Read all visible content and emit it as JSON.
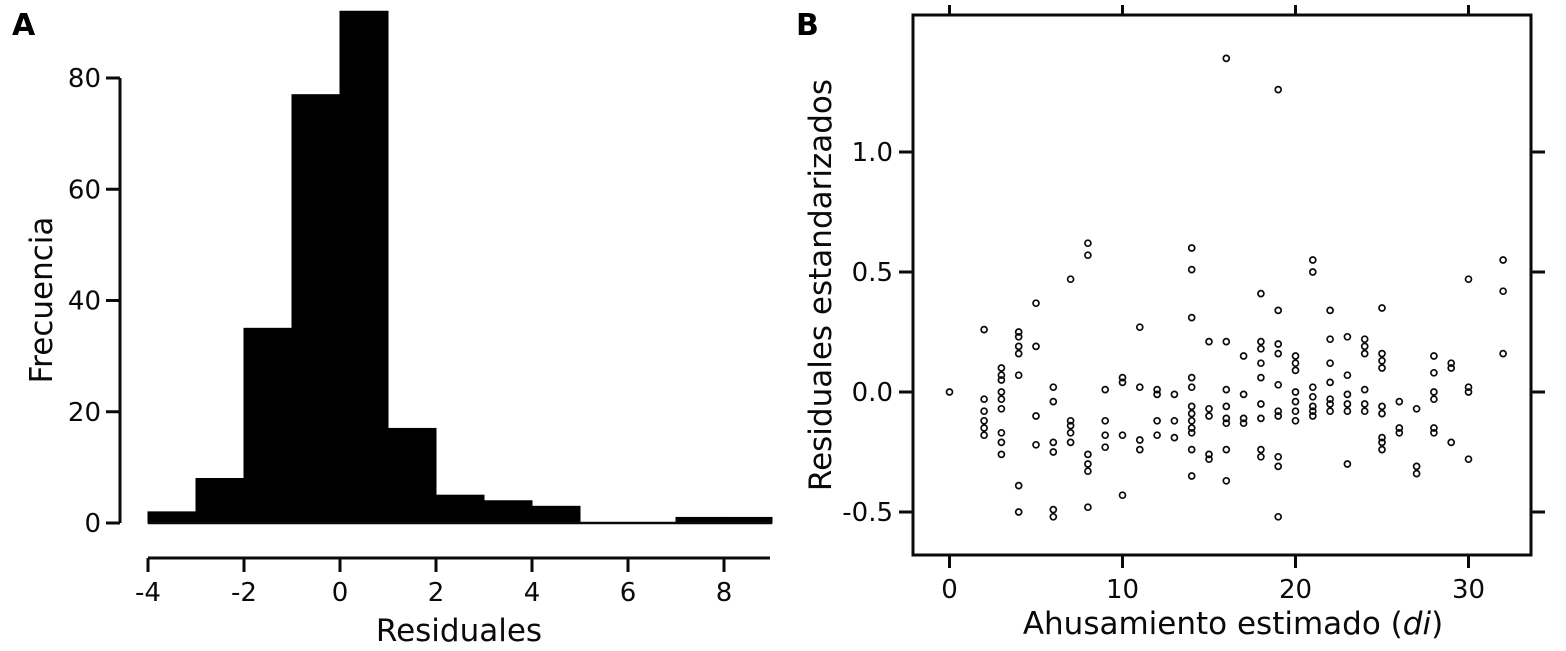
{
  "figure": {
    "background": "#ffffff",
    "ink_color": "#0a0a0a",
    "panel_a_letter": "A",
    "panel_b_letter": "B"
  },
  "chart_data": [
    {
      "type": "bar",
      "panel_label": "A",
      "title": "",
      "xlabel": "Residuales",
      "ylabel": "Frecuencia",
      "bar_color": "#000000",
      "bin_start": -4,
      "bin_width": 1,
      "bin_edges": [
        -4,
        -3,
        -2,
        -1,
        0,
        1,
        2,
        3,
        4,
        5,
        6,
        7,
        8,
        9
      ],
      "values": [
        2,
        8,
        35,
        77,
        92,
        17,
        5,
        4,
        3,
        0,
        0,
        1,
        1
      ],
      "x_ticks": [
        -4,
        -2,
        0,
        2,
        4,
        6,
        8
      ],
      "x_tick_labels": [
        "-4",
        "-2",
        "0",
        "2",
        "4",
        "6",
        "8"
      ],
      "y_ticks": [
        0,
        20,
        40,
        60,
        80
      ],
      "y_tick_labels": [
        "0",
        "20",
        "40",
        "60",
        "80"
      ],
      "xlim": [
        -4,
        9
      ],
      "ylim": [
        0,
        92
      ],
      "grid": false
    },
    {
      "type": "scatter",
      "panel_label": "B",
      "title": "",
      "xlabel_prefix": "Ahusamiento estimado (",
      "xlabel_italic": "di",
      "xlabel_suffix": ")",
      "ylabel": "Residuales estandarizados",
      "marker": "open-circle",
      "marker_color": "#0a0a0a",
      "x_ticks": [
        0,
        10,
        20,
        30
      ],
      "x_tick_labels": [
        "0",
        "10",
        "20",
        "30"
      ],
      "y_ticks": [
        -0.5,
        0.0,
        0.5,
        1.0
      ],
      "y_tick_labels": [
        "-0.5",
        "0.0",
        "0.5",
        "1.0"
      ],
      "xlim": [
        -2.1,
        33.6
      ],
      "ylim": [
        -0.68,
        1.57
      ],
      "grid": false,
      "frame": "box-with-outer-ticks-all-sides",
      "points": [
        [
          0,
          0.0
        ],
        [
          2,
          0.26
        ],
        [
          2,
          -0.03
        ],
        [
          2,
          -0.08
        ],
        [
          2,
          -0.12
        ],
        [
          2,
          -0.15
        ],
        [
          2,
          -0.18
        ],
        [
          3,
          0.1
        ],
        [
          3,
          0.07
        ],
        [
          3,
          0.05
        ],
        [
          3,
          0.0
        ],
        [
          3,
          -0.03
        ],
        [
          3,
          -0.07
        ],
        [
          3,
          -0.17
        ],
        [
          3,
          -0.21
        ],
        [
          3,
          -0.26
        ],
        [
          4,
          0.25
        ],
        [
          4,
          0.23
        ],
        [
          4,
          0.19
        ],
        [
          4,
          0.16
        ],
        [
          4,
          0.07
        ],
        [
          4,
          -0.39
        ],
        [
          4,
          -0.5
        ],
        [
          5,
          0.37
        ],
        [
          5,
          0.19
        ],
        [
          5,
          -0.1
        ],
        [
          5,
          -0.22
        ],
        [
          6,
          0.02
        ],
        [
          6,
          -0.04
        ],
        [
          6,
          -0.21
        ],
        [
          6,
          -0.25
        ],
        [
          6,
          -0.49
        ],
        [
          6,
          -0.52
        ],
        [
          7,
          0.47
        ],
        [
          7,
          -0.12
        ],
        [
          7,
          -0.14
        ],
        [
          7,
          -0.17
        ],
        [
          7,
          -0.21
        ],
        [
          8,
          0.62
        ],
        [
          8,
          0.57
        ],
        [
          8,
          -0.26
        ],
        [
          8,
          -0.3
        ],
        [
          8,
          -0.33
        ],
        [
          8,
          -0.48
        ],
        [
          9,
          0.01
        ],
        [
          9,
          -0.12
        ],
        [
          9,
          -0.18
        ],
        [
          9,
          -0.23
        ],
        [
          10,
          0.06
        ],
        [
          10,
          0.04
        ],
        [
          10,
          -0.18
        ],
        [
          10,
          -0.43
        ],
        [
          11,
          0.27
        ],
        [
          11,
          0.02
        ],
        [
          11,
          -0.2
        ],
        [
          11,
          -0.24
        ],
        [
          12,
          0.01
        ],
        [
          12,
          -0.01
        ],
        [
          12,
          -0.12
        ],
        [
          12,
          -0.18
        ],
        [
          13,
          -0.01
        ],
        [
          13,
          -0.12
        ],
        [
          13,
          -0.19
        ],
        [
          14,
          0.6
        ],
        [
          14,
          0.51
        ],
        [
          14,
          0.31
        ],
        [
          14,
          0.06
        ],
        [
          14,
          0.02
        ],
        [
          14,
          -0.06
        ],
        [
          14,
          -0.09
        ],
        [
          14,
          -0.12
        ],
        [
          14,
          -0.15
        ],
        [
          14,
          -0.17
        ],
        [
          14,
          -0.24
        ],
        [
          14,
          -0.35
        ],
        [
          15,
          0.21
        ],
        [
          15,
          -0.07
        ],
        [
          15,
          -0.1
        ],
        [
          15,
          -0.26
        ],
        [
          15,
          -0.28
        ],
        [
          16,
          1.39
        ],
        [
          16,
          0.21
        ],
        [
          16,
          0.01
        ],
        [
          16,
          -0.06
        ],
        [
          16,
          -0.11
        ],
        [
          16,
          -0.13
        ],
        [
          16,
          -0.24
        ],
        [
          16,
          -0.37
        ],
        [
          17,
          0.15
        ],
        [
          17,
          -0.01
        ],
        [
          17,
          -0.11
        ],
        [
          17,
          -0.13
        ],
        [
          18,
          0.41
        ],
        [
          18,
          0.21
        ],
        [
          18,
          0.18
        ],
        [
          18,
          0.12
        ],
        [
          18,
          0.06
        ],
        [
          18,
          -0.05
        ],
        [
          18,
          -0.11
        ],
        [
          18,
          -0.24
        ],
        [
          18,
          -0.27
        ],
        [
          19,
          1.26
        ],
        [
          19,
          0.34
        ],
        [
          19,
          0.2
        ],
        [
          19,
          0.16
        ],
        [
          19,
          0.03
        ],
        [
          19,
          -0.08
        ],
        [
          19,
          -0.1
        ],
        [
          19,
          -0.27
        ],
        [
          19,
          -0.31
        ],
        [
          19,
          -0.52
        ],
        [
          20,
          0.15
        ],
        [
          20,
          0.12
        ],
        [
          20,
          0.09
        ],
        [
          20,
          0.0
        ],
        [
          20,
          -0.04
        ],
        [
          20,
          -0.08
        ],
        [
          20,
          -0.12
        ],
        [
          21,
          0.55
        ],
        [
          21,
          0.5
        ],
        [
          21,
          0.02
        ],
        [
          21,
          -0.02
        ],
        [
          21,
          -0.06
        ],
        [
          21,
          -0.08
        ],
        [
          21,
          -0.1
        ],
        [
          22,
          0.34
        ],
        [
          22,
          0.22
        ],
        [
          22,
          0.12
        ],
        [
          22,
          0.04
        ],
        [
          22,
          -0.03
        ],
        [
          22,
          -0.05
        ],
        [
          22,
          -0.08
        ],
        [
          23,
          0.23
        ],
        [
          23,
          0.07
        ],
        [
          23,
          -0.01
        ],
        [
          23,
          -0.05
        ],
        [
          23,
          -0.08
        ],
        [
          23,
          -0.3
        ],
        [
          24,
          0.22
        ],
        [
          24,
          0.19
        ],
        [
          24,
          0.16
        ],
        [
          24,
          0.01
        ],
        [
          24,
          -0.05
        ],
        [
          24,
          -0.08
        ],
        [
          25,
          0.35
        ],
        [
          25,
          0.16
        ],
        [
          25,
          0.13
        ],
        [
          25,
          0.1
        ],
        [
          25,
          -0.06
        ],
        [
          25,
          -0.09
        ],
        [
          25,
          -0.19
        ],
        [
          25,
          -0.21
        ],
        [
          25,
          -0.24
        ],
        [
          26,
          -0.04
        ],
        [
          26,
          -0.15
        ],
        [
          26,
          -0.17
        ],
        [
          27,
          -0.07
        ],
        [
          27,
          -0.31
        ],
        [
          27,
          -0.34
        ],
        [
          28,
          0.15
        ],
        [
          28,
          0.08
        ],
        [
          28,
          0.0
        ],
        [
          28,
          -0.03
        ],
        [
          28,
          -0.15
        ],
        [
          28,
          -0.17
        ],
        [
          29,
          0.12
        ],
        [
          29,
          0.1
        ],
        [
          29,
          -0.21
        ],
        [
          30,
          0.47
        ],
        [
          30,
          0.02
        ],
        [
          30,
          0.0
        ],
        [
          30,
          -0.28
        ],
        [
          32,
          0.55
        ],
        [
          32,
          0.42
        ],
        [
          32,
          0.16
        ]
      ]
    }
  ]
}
